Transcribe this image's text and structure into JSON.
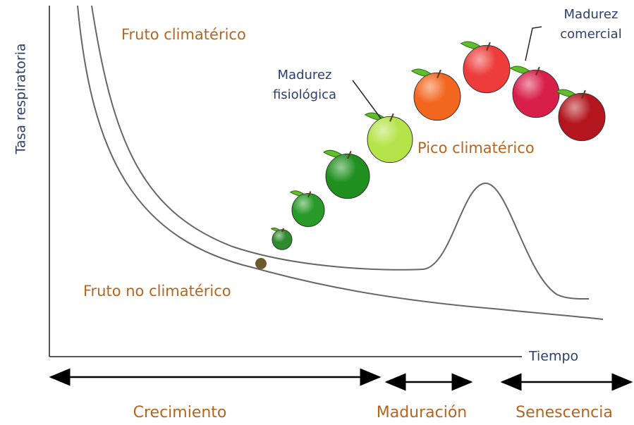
{
  "axes": {
    "y_label": "Tasa respiratoria",
    "x_label": "Tiempo"
  },
  "curves": [
    {
      "label": "Fruto climatérico"
    },
    {
      "label": "Fruto no climatérico"
    }
  ],
  "annotations": [
    {
      "lines": [
        "Madurez",
        "fisiológica"
      ]
    },
    {
      "lines": [
        "Madurez",
        "comercial"
      ]
    },
    {
      "lines": [
        "Pico climatérico"
      ]
    }
  ],
  "phases": [
    "Crecimiento",
    "Maduración",
    "Senescencia"
  ]
}
